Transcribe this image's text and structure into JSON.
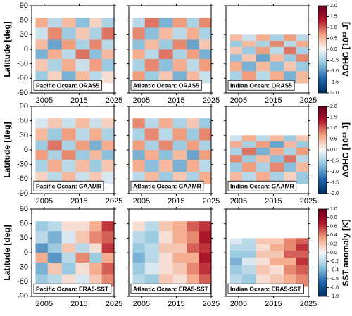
{
  "chart_data": [
    {
      "type": "heatmap",
      "label": "Pacific Ocean: ORAS5",
      "ylabel": "Latitude [deg]",
      "x_bins": [
        2002.5,
        2006,
        2010,
        2014,
        2018,
        2021.5,
        2025
      ],
      "y_bins": [
        -70,
        -45,
        -20,
        0,
        20,
        45,
        65
      ],
      "values": [
        [
          -0.6,
          0.3,
          -0.8,
          0.5,
          -0.4,
          0.2
        ],
        [
          0.4,
          -0.5,
          0.6,
          -0.3,
          0.7,
          -0.6
        ],
        [
          -0.8,
          0.6,
          -0.4,
          0.9,
          -0.7,
          0.5
        ],
        [
          0.5,
          -0.9,
          0.7,
          -0.5,
          0.8,
          -0.4
        ],
        [
          -0.3,
          0.8,
          -0.6,
          0.4,
          -0.5,
          0.9
        ],
        [
          0.6,
          -0.4,
          0.5,
          -0.7,
          0.3,
          -0.5
        ]
      ],
      "clim": [
        -2,
        2
      ],
      "colormap": [
        "#053061",
        "#2166ac",
        "#92c5de",
        "#f7f7f7",
        "#f4a582",
        "#b2182b",
        "#67001f"
      ],
      "xlim": [
        2001.4,
        2025
      ],
      "ylim": [
        -90,
        90
      ],
      "xticks": [
        2005,
        2015,
        2025
      ],
      "yticks": [
        -90,
        -60,
        -30,
        0,
        30,
        60,
        90
      ]
    },
    {
      "type": "heatmap",
      "label": "Atlantic Ocean: ORAS5",
      "x_bins": [
        2002.5,
        2006,
        2010,
        2014,
        2018,
        2021.5,
        2025
      ],
      "y_bins": [
        -70,
        -45,
        -20,
        0,
        20,
        45,
        65
      ],
      "values": [
        [
          0.7,
          -0.6,
          0.4,
          -0.8,
          0.5,
          -0.3
        ],
        [
          -0.5,
          0.8,
          -0.7,
          0.6,
          -0.4,
          0.7
        ],
        [
          0.6,
          -0.4,
          0.9,
          -0.5,
          0.7,
          -0.8
        ],
        [
          -0.7,
          0.5,
          -0.6,
          0.8,
          -0.9,
          0.4
        ],
        [
          0.8,
          -0.7,
          0.5,
          -0.4,
          0.6,
          -0.5
        ],
        [
          -0.4,
          0.9,
          -0.8,
          0.7,
          -0.5,
          0.8
        ]
      ],
      "clim": [
        -2,
        2
      ],
      "colormap": [
        "#053061",
        "#2166ac",
        "#92c5de",
        "#f7f7f7",
        "#f4a582",
        "#b2182b",
        "#67001f"
      ],
      "xlim": [
        2001.4,
        2025
      ],
      "ylim": [
        -90,
        90
      ],
      "xticks": [
        2005,
        2015,
        2025
      ],
      "yticks": [
        -90,
        -60,
        -30,
        0,
        30,
        60,
        90
      ]
    },
    {
      "type": "heatmap",
      "label": "Indian Ocean: ORAS5",
      "x_bins": [
        2002.5,
        2006,
        2010,
        2014,
        2018,
        2021.5,
        2025
      ],
      "y_bins": [
        -70,
        -45,
        -25,
        -10,
        5,
        18,
        30
      ],
      "values": [
        [
          -0.5,
          0.7,
          -0.4,
          0.6,
          -0.8,
          0.5
        ],
        [
          0.6,
          -0.8,
          0.5,
          -0.7,
          0.4,
          -0.6
        ],
        [
          -0.7,
          0.4,
          -0.9,
          0.5,
          -0.6,
          0.8
        ],
        [
          0.4,
          -0.6,
          0.7,
          -0.4,
          0.9,
          -0.5
        ],
        [
          -0.6,
          0.5,
          -0.5,
          0.8,
          -0.4,
          0.6
        ],
        [
          0.5,
          -0.3,
          0.6,
          -0.5,
          0.7,
          -0.4
        ]
      ],
      "clim": [
        -2,
        2
      ],
      "colormap": [
        "#053061",
        "#2166ac",
        "#92c5de",
        "#f7f7f7",
        "#f4a582",
        "#b2182b",
        "#67001f"
      ],
      "xlim": [
        2001.4,
        2025
      ],
      "ylim": [
        -90,
        90
      ],
      "xticks": [
        2005,
        2015,
        2025
      ],
      "yticks": [
        -90,
        -60,
        -30,
        0,
        30,
        60,
        90
      ],
      "colorbar": {
        "label": "ΔOHC [10²³ J]",
        "ticks": [
          {
            "value": -2,
            "label": "-2.0"
          },
          {
            "value": -1.5,
            "label": "-1.5"
          },
          {
            "value": -1,
            "label": "-1.0"
          },
          {
            "value": -0.5,
            "label": "-0.5"
          },
          {
            "value": 0,
            "label": "0.0"
          },
          {
            "value": 0.5,
            "label": "0.5"
          },
          {
            "value": 1,
            "label": "1.0"
          },
          {
            "value": 1.5,
            "label": "1.5"
          },
          {
            "value": 2,
            "label": "2.0"
          }
        ]
      }
    },
    {
      "type": "heatmap",
      "label": "Pacific Ocean: GAAMR",
      "ylabel": "Latitude [deg]",
      "x_bins": [
        2002.5,
        2006,
        2010,
        2014,
        2018,
        2021.5,
        2025
      ],
      "y_bins": [
        -70,
        -45,
        -20,
        0,
        20,
        45,
        65
      ],
      "values": [
        [
          0.3,
          -0.4,
          0.5,
          -0.3,
          0.4,
          -0.2
        ],
        [
          -0.5,
          0.6,
          -0.4,
          0.5,
          -0.6,
          0.4
        ],
        [
          0.7,
          -0.5,
          0.8,
          -0.6,
          0.5,
          -0.7
        ],
        [
          -0.6,
          0.9,
          -0.5,
          0.7,
          -0.8,
          0.6
        ],
        [
          0.5,
          -0.6,
          0.7,
          -0.4,
          0.6,
          -0.5
        ],
        [
          -0.2,
          0.4,
          -0.3,
          0.5,
          -0.3,
          0.3
        ]
      ],
      "clim": [
        -2,
        2
      ],
      "colormap": [
        "#053061",
        "#2166ac",
        "#92c5de",
        "#f7f7f7",
        "#f4a582",
        "#b2182b",
        "#67001f"
      ],
      "xlim": [
        2001.4,
        2025
      ],
      "ylim": [
        -90,
        90
      ],
      "xticks": [
        2005,
        2015,
        2025
      ],
      "yticks": [
        -90,
        -60,
        -30,
        0,
        30,
        60,
        90
      ]
    },
    {
      "type": "heatmap",
      "label": "Atlantic Ocean: GAAMR",
      "x_bins": [
        2002.5,
        2006,
        2010,
        2014,
        2018,
        2021.5,
        2025
      ],
      "y_bins": [
        -70,
        -45,
        -20,
        0,
        20,
        45,
        65
      ],
      "values": [
        [
          -0.4,
          0.5,
          -0.6,
          0.4,
          -0.5,
          0.6
        ],
        [
          0.6,
          -0.7,
          0.5,
          -0.8,
          0.6,
          -0.4
        ],
        [
          -0.8,
          0.6,
          -0.7,
          0.5,
          -0.9,
          0.7
        ],
        [
          0.7,
          -0.5,
          0.8,
          -0.6,
          0.7,
          -0.5
        ],
        [
          -0.5,
          0.8,
          -0.4,
          0.7,
          -0.6,
          0.8
        ],
        [
          0.8,
          -0.4,
          0.6,
          -0.5,
          0.4,
          -0.6
        ]
      ],
      "clim": [
        -2,
        2
      ],
      "colormap": [
        "#053061",
        "#2166ac",
        "#92c5de",
        "#f7f7f7",
        "#f4a582",
        "#b2182b",
        "#67001f"
      ],
      "xlim": [
        2001.4,
        2025
      ],
      "ylim": [
        -90,
        90
      ],
      "xticks": [
        2005,
        2015,
        2025
      ],
      "yticks": [
        -90,
        -60,
        -30,
        0,
        30,
        60,
        90
      ]
    },
    {
      "type": "heatmap",
      "label": "Indian Ocean: GAAMR",
      "x_bins": [
        2002.5,
        2006,
        2010,
        2014,
        2018,
        2021.5,
        2025
      ],
      "y_bins": [
        -70,
        -45,
        -25,
        -10,
        5,
        18,
        30
      ],
      "values": [
        [
          0.5,
          -0.4,
          0.6,
          -0.5,
          0.3,
          -0.6
        ],
        [
          -0.6,
          0.7,
          -0.5,
          0.8,
          -0.7,
          0.5
        ],
        [
          0.8,
          -0.6,
          0.5,
          -0.7,
          0.9,
          -0.4
        ],
        [
          -0.5,
          0.9,
          -0.8,
          0.6,
          -0.5,
          0.7
        ],
        [
          0.6,
          -0.5,
          0.7,
          -0.9,
          0.5,
          -0.6
        ],
        [
          -0.3,
          0.6,
          -0.4,
          0.5,
          -0.6,
          0.4
        ]
      ],
      "clim": [
        -2,
        2
      ],
      "colormap": [
        "#053061",
        "#2166ac",
        "#92c5de",
        "#f7f7f7",
        "#f4a582",
        "#b2182b",
        "#67001f"
      ],
      "xlim": [
        2001.4,
        2025
      ],
      "ylim": [
        -90,
        90
      ],
      "xticks": [
        2005,
        2015,
        2025
      ],
      "yticks": [
        -90,
        -60,
        -30,
        0,
        30,
        60,
        90
      ],
      "colorbar": {
        "label": "ΔOHC [10²³ J]",
        "ticks": [
          {
            "value": -2,
            "label": "-2.0"
          },
          {
            "value": -1.5,
            "label": "-1.5"
          },
          {
            "value": -1,
            "label": "-1.0"
          },
          {
            "value": -0.5,
            "label": "-0.5"
          },
          {
            "value": 0,
            "label": "0.0"
          },
          {
            "value": 0.5,
            "label": "0.5"
          },
          {
            "value": 1,
            "label": "1.0"
          },
          {
            "value": 1.5,
            "label": "1.5"
          },
          {
            "value": 2,
            "label": "2.0"
          }
        ]
      }
    },
    {
      "type": "heatmap",
      "label": "Pacific Ocean: ERA5-SST",
      "ylabel": "Latitude [deg]",
      "x_bins": [
        2002.5,
        2006,
        2010,
        2014,
        2018,
        2021.5,
        2025
      ],
      "y_bins": [
        -70,
        -45,
        -20,
        0,
        20,
        45,
        65
      ],
      "values": [
        [
          -0.3,
          -0.2,
          0.1,
          -0.1,
          0.2,
          0.4
        ],
        [
          -0.4,
          0.2,
          -0.3,
          0.1,
          0.3,
          0.5
        ],
        [
          0.3,
          -0.5,
          -0.2,
          0.4,
          -0.3,
          0.3
        ],
        [
          -0.5,
          -0.3,
          0.2,
          -0.2,
          0.1,
          0.6
        ],
        [
          -0.2,
          -0.4,
          -0.1,
          0.2,
          0.4,
          0.5
        ],
        [
          -0.3,
          -0.2,
          0.1,
          0.1,
          0.3,
          0.6
        ]
      ],
      "clim": [
        -1,
        1
      ],
      "colormap": [
        "#053061",
        "#2166ac",
        "#92c5de",
        "#f7f7f7",
        "#f4a582",
        "#b2182b",
        "#67001f"
      ],
      "xlim": [
        2001.4,
        2025
      ],
      "ylim": [
        -90,
        90
      ],
      "xticks": [
        2005,
        2015,
        2025
      ],
      "yticks": [
        -90,
        -60,
        -30,
        0,
        30,
        60,
        90
      ]
    },
    {
      "type": "heatmap",
      "label": "Atlantic Ocean: ERA5-SST",
      "x_bins": [
        2002.5,
        2006,
        2010,
        2014,
        2018,
        2021.5,
        2025
      ],
      "y_bins": [
        -70,
        -45,
        -20,
        0,
        20,
        45,
        65
      ],
      "values": [
        [
          -0.2,
          -0.3,
          0.2,
          0.1,
          0.3,
          0.5
        ],
        [
          -0.3,
          -0.1,
          0.1,
          0.2,
          0.4,
          0.6
        ],
        [
          -0.4,
          -0.2,
          0.1,
          0.3,
          0.3,
          0.7
        ],
        [
          -0.3,
          -0.2,
          0.2,
          0.2,
          0.5,
          0.6
        ],
        [
          -0.2,
          -0.3,
          0.1,
          0.3,
          0.4,
          0.7
        ],
        [
          0.1,
          -0.2,
          0.2,
          0.3,
          0.5,
          0.6
        ]
      ],
      "clim": [
        -1,
        1
      ],
      "colormap": [
        "#053061",
        "#2166ac",
        "#92c5de",
        "#f7f7f7",
        "#f4a582",
        "#b2182b",
        "#67001f"
      ],
      "xlim": [
        2001.4,
        2025
      ],
      "ylim": [
        -90,
        90
      ],
      "xticks": [
        2005,
        2015,
        2025
      ],
      "yticks": [
        -90,
        -60,
        -30,
        0,
        30,
        60,
        90
      ]
    },
    {
      "type": "heatmap",
      "label": "Indian Ocean: ERA5-SST",
      "x_bins": [
        2002.5,
        2006,
        2010,
        2014,
        2018,
        2021.5,
        2025
      ],
      "y_bins": [
        -70,
        -45,
        -25,
        -10,
        5,
        18,
        30
      ],
      "values": [
        [
          -0.2,
          -0.3,
          0.1,
          0.2,
          0.3,
          0.4
        ],
        [
          -0.3,
          -0.2,
          0.2,
          0.1,
          0.4,
          0.5
        ],
        [
          -0.4,
          -0.1,
          0.1,
          0.3,
          0.3,
          0.6
        ],
        [
          -0.3,
          -0.3,
          0.2,
          0.2,
          0.5,
          0.5
        ],
        [
          -0.2,
          -0.2,
          0.1,
          0.3,
          0.4,
          0.6
        ],
        [
          -0.1,
          -0.2,
          0.2,
          0.2,
          0.4,
          0.5
        ]
      ],
      "clim": [
        -1,
        1
      ],
      "colormap": [
        "#053061",
        "#2166ac",
        "#92c5de",
        "#f7f7f7",
        "#f4a582",
        "#b2182b",
        "#67001f"
      ],
      "xlim": [
        2001.4,
        2025
      ],
      "ylim": [
        -90,
        90
      ],
      "xticks": [
        2005,
        2015,
        2025
      ],
      "yticks": [
        -90,
        -60,
        -30,
        0,
        30,
        60,
        90
      ],
      "colorbar": {
        "label": "SST anomaly [K]",
        "ticks": [
          {
            "value": -1,
            "label": "-1.0"
          },
          {
            "value": -0.8,
            "label": "-0.8"
          },
          {
            "value": -0.6,
            "label": "-0.6"
          },
          {
            "value": -0.4,
            "label": "-0.4"
          },
          {
            "value": -0.2,
            "label": "-0.2"
          },
          {
            "value": 0,
            "label": "0.0"
          },
          {
            "value": 0.2,
            "label": "0.2"
          },
          {
            "value": 0.4,
            "label": "0.4"
          },
          {
            "value": 0.6,
            "label": "0.6"
          },
          {
            "value": 0.8,
            "label": "0.8"
          },
          {
            "value": 1,
            "label": "1.0"
          }
        ]
      }
    }
  ]
}
